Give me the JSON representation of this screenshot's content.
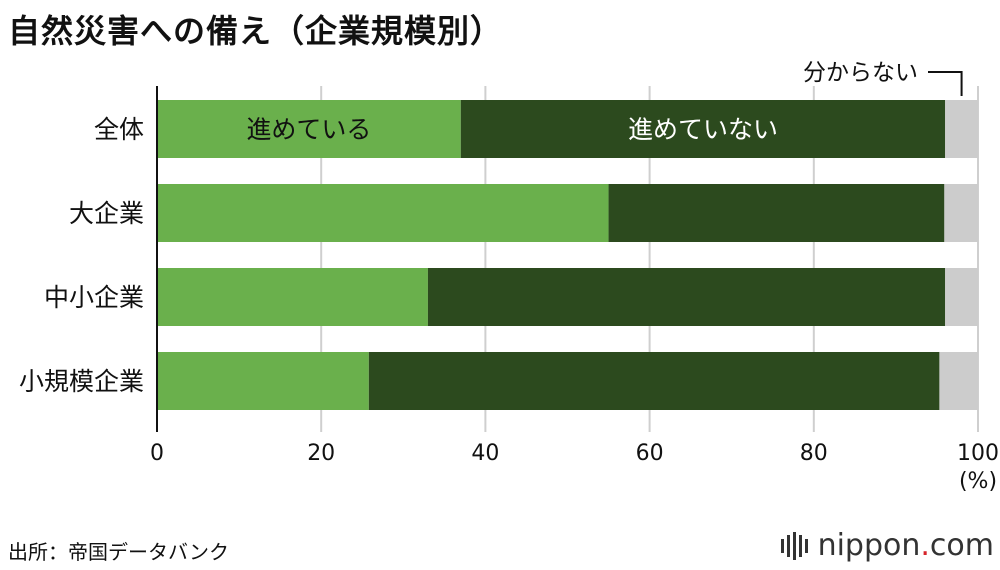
{
  "title": "自然災害への備え（企業規模別）",
  "source": "出所：帝国データバンク",
  "logo": {
    "name": "nippon",
    "dot": ".",
    "tld": "com"
  },
  "chart_data": {
    "type": "bar",
    "orientation": "horizontal",
    "stacked": true,
    "categories": [
      "全体",
      "大企業",
      "中小企業",
      "小規模企業"
    ],
    "series": [
      {
        "name": "進めている",
        "values": [
          37.0,
          55.0,
          33.0,
          25.8
        ],
        "color": "#6ab04c"
      },
      {
        "name": "進めていない",
        "values": [
          59.0,
          40.9,
          63.0,
          69.5
        ],
        "color": "#2c4a1e"
      },
      {
        "name": "分からない",
        "values": [
          4.0,
          4.1,
          4.0,
          4.7
        ],
        "color": "#cccccc"
      }
    ],
    "xlim": [
      0,
      100
    ],
    "xticks": [
      0,
      20,
      40,
      60,
      80,
      100
    ],
    "xunit": "(%)",
    "grid": true
  }
}
